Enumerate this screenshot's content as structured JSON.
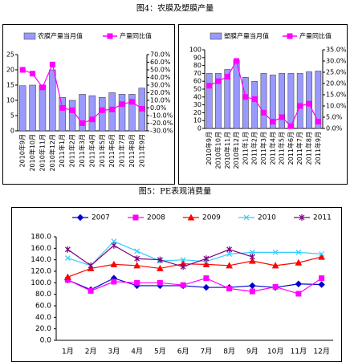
{
  "captions": [
    "图4：农膜及塑膜产量",
    "图5：PE表观消费量"
  ],
  "chart_data": [
    {
      "type": "combo",
      "categories": [
        "2010年9月",
        "2010年10月",
        "2010年11月",
        "2010年12月",
        "2011年1月",
        "2011年2月",
        "2011年3月",
        "2011年4月",
        "2011年5月",
        "2011年6月",
        "2011年7月",
        "2011年8月",
        "2011年9月"
      ],
      "series": [
        {
          "name": "农膜产量当月值",
          "color": "#9999ff",
          "values": [
            14.8,
            15,
            15,
            20,
            11,
            10,
            12,
            11.5,
            11,
            12.5,
            12,
            12,
            14
          ]
        },
        {
          "name": "产量同比值",
          "color": "#ff00ff",
          "axis": "y2",
          "values": [
            50,
            45,
            27,
            57,
            0,
            -3,
            -20,
            -15,
            -3,
            -2,
            5,
            8,
            -1
          ]
        }
      ],
      "ylim": [
        0,
        25
      ],
      "yticks": [
        0,
        5,
        10,
        15,
        20,
        25
      ],
      "y2lim": [
        -30,
        70
      ],
      "y2ticks": [
        {
          "value": -30,
          "label": "-30.0%"
        },
        {
          "value": -20,
          "label": "-20.0%"
        },
        {
          "value": -10,
          "label": "-10.0%"
        },
        {
          "value": 0,
          "label": "0.0%"
        },
        {
          "value": 10,
          "label": "10.0%"
        },
        {
          "value": 20,
          "label": "20.0%"
        },
        {
          "value": 30,
          "label": "30.0%"
        },
        {
          "value": 40,
          "label": "40.0%"
        },
        {
          "value": 50,
          "label": "50.0%"
        },
        {
          "value": 60,
          "label": "60.0%"
        },
        {
          "value": 70,
          "label": "70.0%"
        }
      ]
    },
    {
      "type": "combo",
      "categories": [
        "2010年9月",
        "2010年10月",
        "2010年11月",
        "2010年12月",
        "2011年1月",
        "2011年2月",
        "2011年3月",
        "2011年4月",
        "2011年5月",
        "2011年6月",
        "2011年7月",
        "2011年8月",
        "2011年9月"
      ],
      "series": [
        {
          "name": "塑膜产量当月值",
          "color": "#9999ff",
          "values": [
            70,
            70,
            75,
            87,
            65,
            60,
            70,
            68,
            70,
            70,
            70,
            72,
            73
          ]
        },
        {
          "name": "产量同比值",
          "color": "#ff00ff",
          "axis": "y2",
          "values": [
            19,
            21,
            23,
            30,
            14,
            13,
            7,
            3,
            5,
            1,
            10,
            11,
            3
          ]
        }
      ],
      "ylim": [
        0,
        100
      ],
      "yticks": [
        0,
        10,
        20,
        30,
        40,
        50,
        60,
        70,
        80,
        90,
        100
      ],
      "y2lim": [
        0,
        35
      ],
      "y2ticks": [
        {
          "value": 0,
          "label": "0.0%"
        },
        {
          "value": 5,
          "label": "5.0%"
        },
        {
          "value": 10,
          "label": "10.0%"
        },
        {
          "value": 15,
          "label": "15.0%"
        },
        {
          "value": 20,
          "label": "20.0%"
        },
        {
          "value": 25,
          "label": "25.0%"
        },
        {
          "value": 30,
          "label": "30.0%"
        },
        {
          "value": 35,
          "label": "35.0%"
        }
      ]
    },
    {
      "type": "line",
      "categories": [
        "1月",
        "2月",
        "3月",
        "4月",
        "5月",
        "6月",
        "7月",
        "8月",
        "9月",
        "10月",
        "11月",
        "12月"
      ],
      "series": [
        {
          "name": "2007",
          "color": "#0000cc",
          "marker": "diamond",
          "values": [
            105,
            88,
            108,
            95,
            95,
            95,
            92,
            92,
            95,
            92,
            98,
            97
          ]
        },
        {
          "name": "2008",
          "color": "#ff00ff",
          "marker": "square",
          "values": [
            105,
            86,
            102,
            100,
            100,
            96,
            108,
            90,
            85,
            93,
            81,
            108
          ]
        },
        {
          "name": "2009",
          "color": "#ff0000",
          "marker": "triangle",
          "values": [
            110,
            125,
            132,
            130,
            125,
            133,
            132,
            130,
            138,
            130,
            135,
            145
          ]
        },
        {
          "name": "2010",
          "color": "#33ccff",
          "marker": "x",
          "values": [
            143,
            130,
            172,
            155,
            138,
            140,
            137,
            150,
            153,
            153,
            153,
            150
          ]
        },
        {
          "name": "2011",
          "color": "#800080",
          "marker": "star",
          "values": [
            158,
            130,
            165,
            142,
            140,
            128,
            142,
            158,
            145,
            null,
            null,
            null
          ]
        }
      ],
      "ylim": [
        0,
        180
      ],
      "yticks": [
        {
          "value": 0,
          "label": "0.0"
        },
        {
          "value": 20,
          "label": "20.0"
        },
        {
          "value": 40,
          "label": "40.0"
        },
        {
          "value": 60,
          "label": "60.0"
        },
        {
          "value": 80,
          "label": "80.0"
        },
        {
          "value": 100,
          "label": "100.0"
        },
        {
          "value": 120,
          "label": "120.0"
        },
        {
          "value": 140,
          "label": "140.0"
        },
        {
          "value": 160,
          "label": "160.0"
        },
        {
          "value": 180,
          "label": "180.0"
        }
      ]
    }
  ]
}
